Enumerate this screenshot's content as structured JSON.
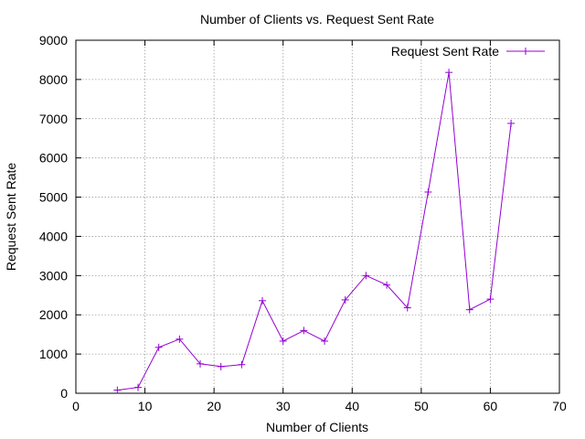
{
  "chart_data": {
    "type": "line",
    "title": "Number of Clients vs. Request Sent Rate",
    "xlabel": "Number of Clients",
    "ylabel": "Request Sent Rate",
    "xlim": [
      0,
      70
    ],
    "ylim": [
      0,
      9000
    ],
    "xticks": [
      0,
      10,
      20,
      30,
      40,
      50,
      60,
      70
    ],
    "yticks": [
      0,
      1000,
      2000,
      3000,
      4000,
      5000,
      6000,
      7000,
      8000,
      9000
    ],
    "grid": true,
    "legend_position": "top-right",
    "series": [
      {
        "name": "Request Sent Rate",
        "color": "#9400d3",
        "marker": "plus",
        "x": [
          6,
          9,
          12,
          15,
          18,
          21,
          24,
          27,
          30,
          33,
          36,
          39,
          42,
          45,
          48,
          51,
          54,
          57,
          60,
          63
        ],
        "y": [
          80,
          150,
          1170,
          1380,
          750,
          680,
          730,
          2360,
          1330,
          1600,
          1330,
          2380,
          3000,
          2760,
          2180,
          5130,
          8180,
          2130,
          2400,
          6880
        ]
      }
    ]
  }
}
